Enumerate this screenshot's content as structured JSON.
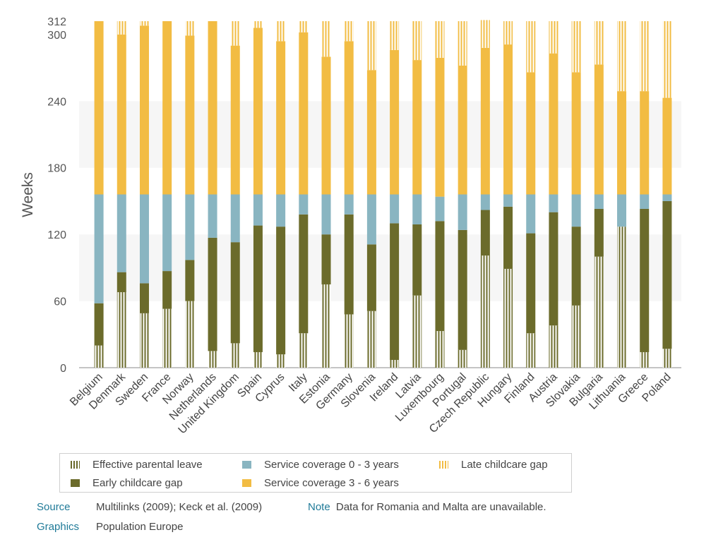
{
  "chart_data": {
    "type": "bar",
    "stacked": true,
    "ylabel": "Weeks",
    "ylim": [
      0,
      312
    ],
    "yticks": [
      0,
      60,
      120,
      180,
      240,
      300,
      312
    ],
    "grid": "horizontal bands",
    "categories": [
      "Belgium",
      "Denmark",
      "Sweden",
      "France",
      "Norway",
      "Netherlands",
      "United Kingdom",
      "Spain",
      "Cyprus",
      "Italy",
      "Estonia",
      "Germany",
      "Slovenia",
      "Ireland",
      "Latvia",
      "Luxembourg",
      "Portugal",
      "Czech Republic",
      "Hungary",
      "Finland",
      "Austria",
      "Slovakia",
      "Bulgaria",
      "Lithuania",
      "Greece",
      "Poland"
    ],
    "series": [
      {
        "name": "Effective parental leave",
        "color": "#6b6b2b",
        "pattern": "stripes",
        "values": [
          20,
          68,
          49,
          53,
          60,
          15,
          22,
          14,
          12,
          31,
          75,
          48,
          51,
          7,
          65,
          33,
          16,
          101,
          89,
          31,
          38,
          56,
          100,
          127,
          14,
          17
        ]
      },
      {
        "name": "Early childcare gap",
        "color": "#6b6b2b",
        "values": [
          38,
          18,
          27,
          34,
          37,
          102,
          91,
          114,
          115,
          107,
          45,
          90,
          60,
          123,
          64,
          99,
          108,
          41,
          56,
          90,
          102,
          71,
          43,
          0,
          129,
          133
        ]
      },
      {
        "name": "Service coverage 0 - 3 years",
        "color": "#89b5c1",
        "values": [
          98,
          70,
          80,
          69,
          59,
          39,
          43,
          28,
          29,
          18,
          36,
          18,
          45,
          26,
          27,
          22,
          32,
          14,
          11,
          35,
          16,
          29,
          13,
          29,
          13,
          6
        ]
      },
      {
        "name": "Service coverage 3 - 6 years",
        "color": "#f2bc43",
        "values": [
          156,
          144,
          152,
          156,
          143,
          156,
          134,
          150,
          138,
          146,
          124,
          138,
          112,
          130,
          121,
          125,
          116,
          132,
          135,
          110,
          127,
          110,
          117,
          93,
          93,
          87
        ]
      },
      {
        "name": "Late childcare gap",
        "color": "#f2bc43",
        "pattern": "stripes",
        "values": [
          0,
          12,
          4,
          0,
          13,
          0,
          22,
          6,
          18,
          10,
          32,
          18,
          44,
          26,
          35,
          33,
          40,
          25,
          21,
          46,
          29,
          46,
          39,
          63,
          63,
          69
        ]
      }
    ],
    "legend": "bottom"
  },
  "footer": {
    "source_key": "Source",
    "source_val": "Multilinks (2009); Keck et al. (2009)",
    "note_key": "Note",
    "note_val": "Data for Romania and Malta are unavailable.",
    "graphics_key": "Graphics",
    "graphics_val": "Population Europe"
  }
}
